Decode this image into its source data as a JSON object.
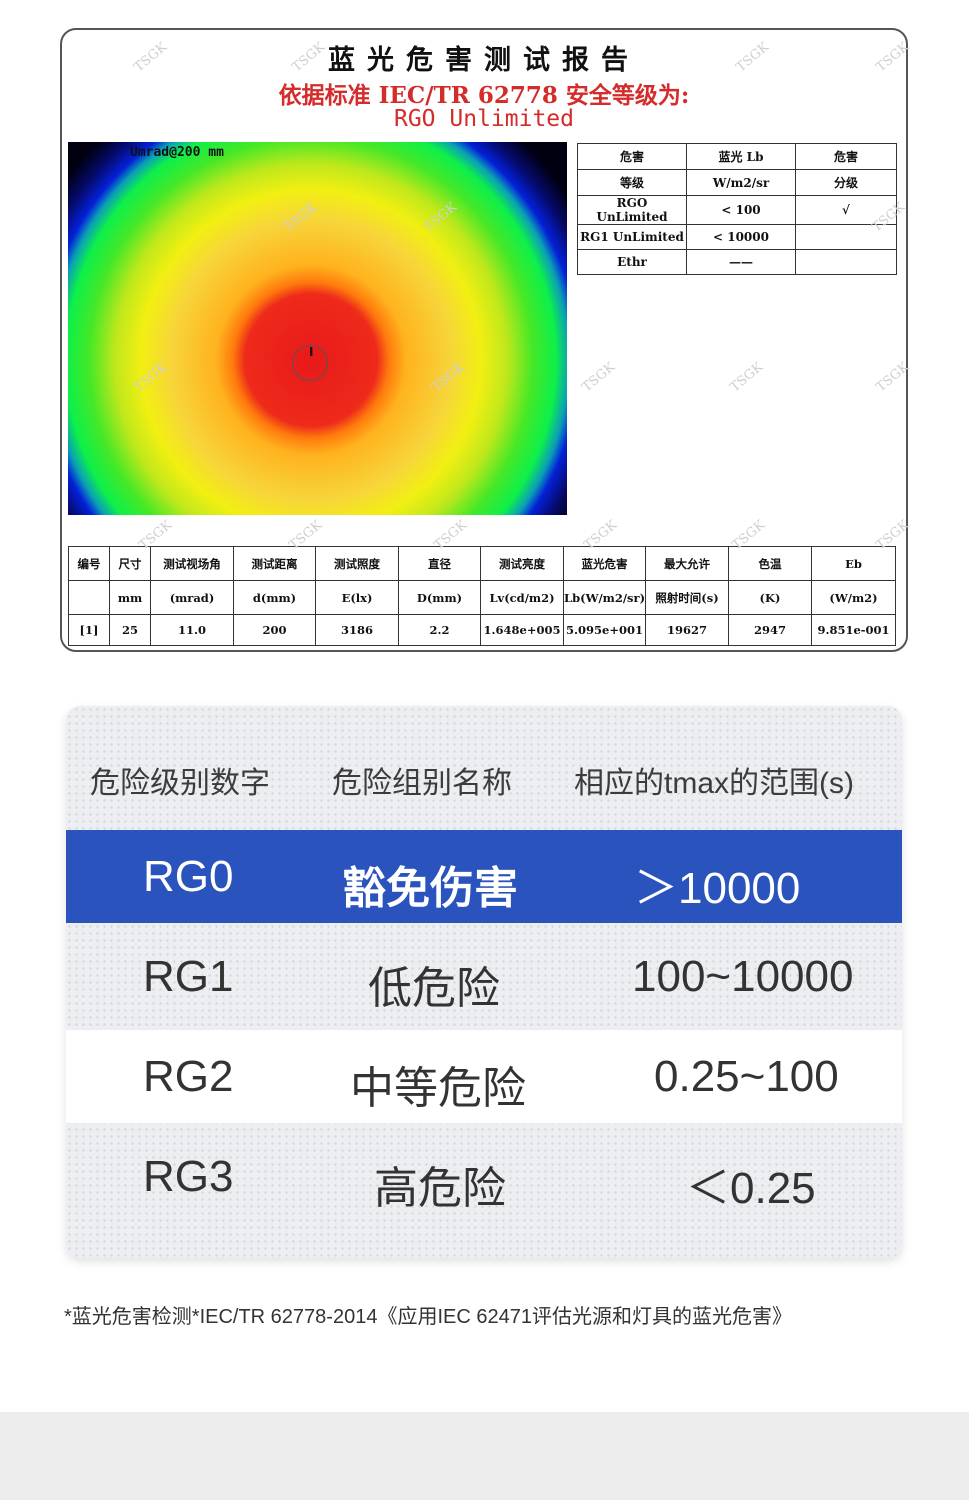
{
  "report": {
    "title": "蓝光危害测试报告",
    "standard_line": "依据标准 IEC/TR 62778 安全等级为:",
    "level_line": "RGO Unlimited",
    "heatmap_label": "Umrad@200 mm",
    "marker_text": "I",
    "watermark": "TSGK",
    "ref_table": {
      "headers": [
        [
          "危害",
          "等级"
        ],
        [
          "蓝光 Lb",
          "W/m2/sr"
        ],
        [
          "危害",
          "分级"
        ]
      ],
      "rows": [
        [
          "RGO UnLimited",
          "< 100",
          "√"
        ],
        [
          "RG1 UnLimited",
          "< 10000",
          ""
        ],
        [
          "Ethr",
          "——",
          ""
        ]
      ]
    },
    "meas_table": {
      "header_top": [
        "编号",
        "尺寸",
        "测试视场角",
        "测试距离",
        "测试照度",
        "直径",
        "测试亮度",
        "蓝光危害",
        "最大允许",
        "色温",
        "Eb"
      ],
      "header_bottom": [
        "",
        "mm",
        "(mrad)",
        "d(mm)",
        "E(lx)",
        "D(mm)",
        "Lv(cd/m2)",
        "Lb(W/m2/sr)",
        "照射时间(s)",
        "(K)",
        "(W/m2)"
      ],
      "row": [
        "[1]",
        "25",
        "11.0",
        "200",
        "3186",
        "2.2",
        "1.648e+005",
        "5.095e+001",
        "19627",
        "2947",
        "9.851e-001"
      ]
    }
  },
  "groups": {
    "headers": [
      "危险级别数字",
      "危险组别名称",
      "相应的tmax的范围(s)"
    ],
    "rows": [
      {
        "code": "RG0",
        "name": "豁免伤害",
        "range": "＞10000"
      },
      {
        "code": "RG1",
        "name": "低危险",
        "range": "100~10000"
      },
      {
        "code": "RG2",
        "name": "中等危险",
        "range": "0.25~100"
      },
      {
        "code": "RG3",
        "name": "高危险",
        "range": "＜0.25"
      }
    ],
    "highlight_color": "#2a53bd"
  },
  "footnote": "*蓝光危害检测*IEC/TR 62778-2014《应用IEC 62471评估光源和灯具的蓝光危害》"
}
